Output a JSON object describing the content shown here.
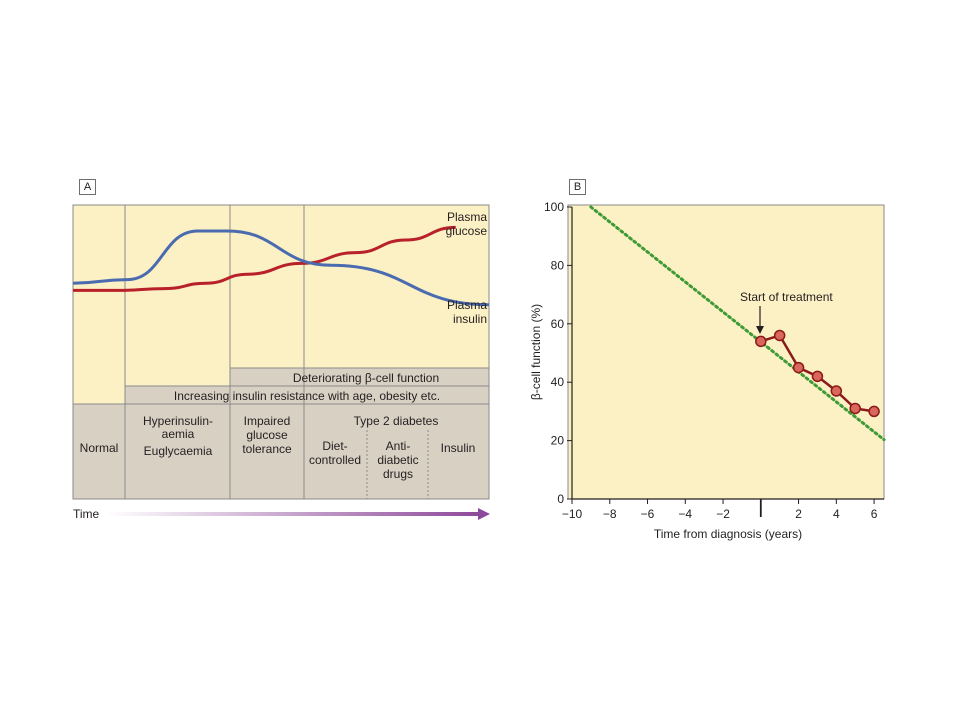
{
  "colors": {
    "background": "#fcf1c4",
    "stage_box": "#d9d0c4",
    "glucose": "#b8202a",
    "insulin": "#4a6bb0",
    "decline": "#3d9a35",
    "measured": "#8b1a1a",
    "marker_fill": "#d9675c",
    "time_arrow": "#8e4a9a"
  },
  "panel_a": {
    "label": "A",
    "glucose_label": [
      "Plasma",
      "glucose"
    ],
    "insulin_label": [
      "Plasma",
      "insulin"
    ],
    "band_beta": "Deteriorating β-cell function",
    "band_resistance": "Increasing insulin resistance with age, obesity etc.",
    "stages": {
      "normal": [
        "Normal"
      ],
      "hyper": [
        "Hyperinsulin-",
        "aemia",
        "Euglycaemia"
      ],
      "igt": [
        "Impaired",
        "glucose",
        "tolerance"
      ],
      "t2d": [
        "Type 2 diabetes"
      ],
      "diet": [
        "Diet-",
        "controlled"
      ],
      "anti": [
        "Anti-",
        "diabetic",
        "drugs"
      ],
      "insulin": [
        "Insulin"
      ]
    },
    "time_label": "Time"
  },
  "chart_data": [
    {
      "type": "line",
      "series": [
        {
          "name": "Plasma glucose",
          "x": [
            0,
            0.11,
            0.22,
            0.32,
            0.42,
            0.55,
            0.68,
            0.8,
            0.92
          ],
          "y": [
            0.72,
            0.72,
            0.73,
            0.76,
            0.81,
            0.87,
            0.93,
            1.0,
            1.07
          ]
        },
        {
          "name": "Plasma insulin",
          "x": [
            0,
            0.13,
            0.3,
            0.37,
            0.62,
            1.0
          ],
          "y": [
            0.76,
            0.78,
            1.05,
            1.05,
            0.86,
            0.64
          ]
        }
      ],
      "xlabel": "Time",
      "ylabel": ""
    },
    {
      "type": "line",
      "series": [
        {
          "x": [
            -9,
            6
          ],
          "y": [
            100,
            23
          ]
        },
        {
          "x": [
            0,
            1,
            2,
            3,
            4,
            5,
            6
          ],
          "y": [
            54,
            56,
            45,
            42,
            37,
            31,
            30
          ]
        }
      ],
      "xlabel": "Time from diagnosis (years)",
      "ylabel": "β-cell function (%)",
      "xlim": [
        -10,
        7
      ],
      "ylim": [
        0,
        100
      ],
      "xticks": [
        "−10",
        "−8",
        "−6",
        "−4",
        "−2",
        "",
        "2",
        "4",
        "6"
      ],
      "yticks": [
        "0",
        "20",
        "40",
        "60",
        "80",
        "100"
      ],
      "annotation": "Start of treatment",
      "panel_label": "B"
    }
  ]
}
